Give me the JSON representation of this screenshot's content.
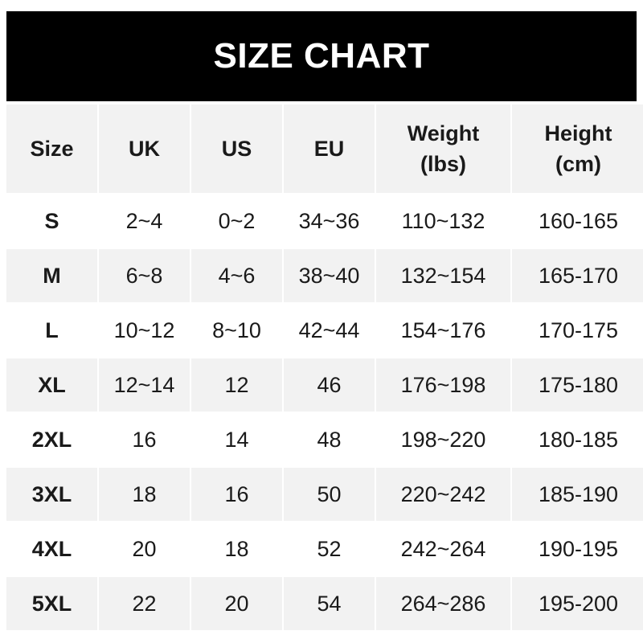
{
  "title": "SIZE CHART",
  "table": {
    "headers": [
      [
        "Size"
      ],
      [
        "UK"
      ],
      [
        "US"
      ],
      [
        "EU"
      ],
      [
        "Weight",
        "(lbs)"
      ],
      [
        "Height",
        "(cm)"
      ]
    ],
    "rows": [
      [
        "S",
        "2~4",
        "0~2",
        "34~36",
        "110~132",
        "160-165"
      ],
      [
        "M",
        "6~8",
        "4~6",
        "38~40",
        "132~154",
        "165-170"
      ],
      [
        "L",
        "10~12",
        "8~10",
        "42~44",
        "154~176",
        "170-175"
      ],
      [
        "XL",
        "12~14",
        "12",
        "46",
        "176~198",
        "175-180"
      ],
      [
        "2XL",
        "16",
        "14",
        "48",
        "198~220",
        "180-185"
      ],
      [
        "3XL",
        "18",
        "16",
        "50",
        "220~242",
        "185-190"
      ],
      [
        "4XL",
        "20",
        "18",
        "52",
        "242~264",
        "190-195"
      ],
      [
        "5XL",
        "22",
        "20",
        "54",
        "264~286",
        "195-200"
      ]
    ]
  },
  "colors": {
    "banner": "#000000",
    "header_bg": "#f2f2f2",
    "stripe": "#f2f2f2"
  }
}
